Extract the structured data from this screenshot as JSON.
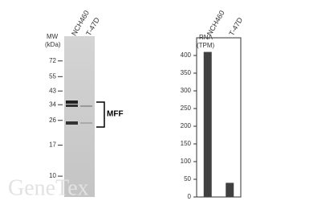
{
  "chart_data": [
    {
      "type": "blot",
      "ylabel": [
        "MW",
        "(kDa)"
      ],
      "lanes": [
        "NCH460",
        "T-47D"
      ],
      "yticks": [
        72,
        55,
        43,
        34,
        26,
        17,
        10
      ],
      "ylim": [
        7,
        110
      ],
      "log_scale": true,
      "annotation": "MFF",
      "watermark": "GeneTex"
    },
    {
      "type": "bar",
      "ylabel": [
        "RNA",
        "(TPM)"
      ],
      "categories": [
        "NCH460",
        "T-47D"
      ],
      "values": [
        410,
        40
      ],
      "color": "#404040",
      "ylim": [
        0,
        450
      ],
      "yticks": [
        0,
        50,
        100,
        150,
        200,
        250,
        300,
        350,
        400
      ]
    }
  ]
}
